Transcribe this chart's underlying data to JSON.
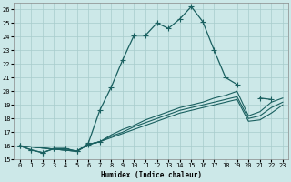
{
  "xlabel": "Humidex (Indice chaleur)",
  "bg_color": "#cce8e8",
  "grid_color": "#a8cccc",
  "line_color": "#1a6060",
  "xlim": [
    -0.5,
    23.5
  ],
  "ylim": [
    15,
    26.5
  ],
  "yticks": [
    15,
    16,
    17,
    18,
    19,
    20,
    21,
    22,
    23,
    24,
    25,
    26
  ],
  "xticks": [
    0,
    1,
    2,
    3,
    4,
    5,
    6,
    7,
    8,
    9,
    10,
    11,
    12,
    13,
    14,
    15,
    16,
    17,
    18,
    19,
    20,
    21,
    22,
    23
  ],
  "lines": [
    {
      "x": [
        0,
        1,
        2,
        3,
        4,
        5,
        6,
        7,
        8,
        9,
        10,
        11,
        12,
        13,
        14,
        15,
        16,
        17,
        18,
        19
      ],
      "y": [
        16.0,
        15.7,
        15.5,
        15.8,
        15.8,
        15.6,
        16.2,
        18.6,
        20.3,
        22.3,
        24.1,
        24.1,
        25.0,
        24.6,
        25.3,
        26.2,
        25.1,
        23.0,
        21.0,
        20.5
      ],
      "marker": "+",
      "markersize": 4,
      "linewidth": 0.9
    },
    {
      "segments": [
        {
          "x": [
            0,
            1,
            2,
            3,
            4,
            5,
            6,
            7
          ],
          "y": [
            16.0,
            15.7,
            15.5,
            15.8,
            15.8,
            15.6,
            16.1,
            16.3
          ]
        },
        {
          "x": [
            21,
            22
          ],
          "y": [
            19.5,
            19.4
          ]
        }
      ],
      "marker": "+",
      "markersize": 4,
      "linewidth": 0.9
    },
    {
      "x": [
        0,
        5,
        6,
        7,
        8,
        9,
        10,
        11,
        12,
        13,
        14,
        15,
        16,
        17,
        18,
        19,
        20,
        21,
        22,
        23
      ],
      "y": [
        16.0,
        15.6,
        16.1,
        16.3,
        16.6,
        16.9,
        17.2,
        17.5,
        17.8,
        18.1,
        18.4,
        18.6,
        18.8,
        19.0,
        19.2,
        19.4,
        17.8,
        17.9,
        18.4,
        19.0
      ],
      "marker": null,
      "markersize": 0,
      "linewidth": 0.8
    },
    {
      "x": [
        0,
        5,
        6,
        7,
        8,
        9,
        10,
        11,
        12,
        13,
        14,
        15,
        16,
        17,
        18,
        19,
        20,
        21,
        22,
        23
      ],
      "y": [
        16.0,
        15.6,
        16.1,
        16.3,
        16.7,
        17.0,
        17.4,
        17.7,
        18.0,
        18.3,
        18.6,
        18.8,
        19.0,
        19.2,
        19.4,
        19.6,
        18.0,
        18.2,
        18.8,
        19.2
      ],
      "marker": null,
      "markersize": 0,
      "linewidth": 0.8
    },
    {
      "x": [
        0,
        5,
        6,
        7,
        8,
        9,
        10,
        11,
        12,
        13,
        14,
        15,
        16,
        17,
        18,
        19,
        20,
        21,
        22,
        23
      ],
      "y": [
        16.0,
        15.6,
        16.1,
        16.3,
        16.8,
        17.2,
        17.5,
        17.9,
        18.2,
        18.5,
        18.8,
        19.0,
        19.2,
        19.5,
        19.7,
        20.0,
        18.2,
        18.5,
        19.2,
        19.5
      ],
      "marker": null,
      "markersize": 0,
      "linewidth": 0.8
    }
  ]
}
